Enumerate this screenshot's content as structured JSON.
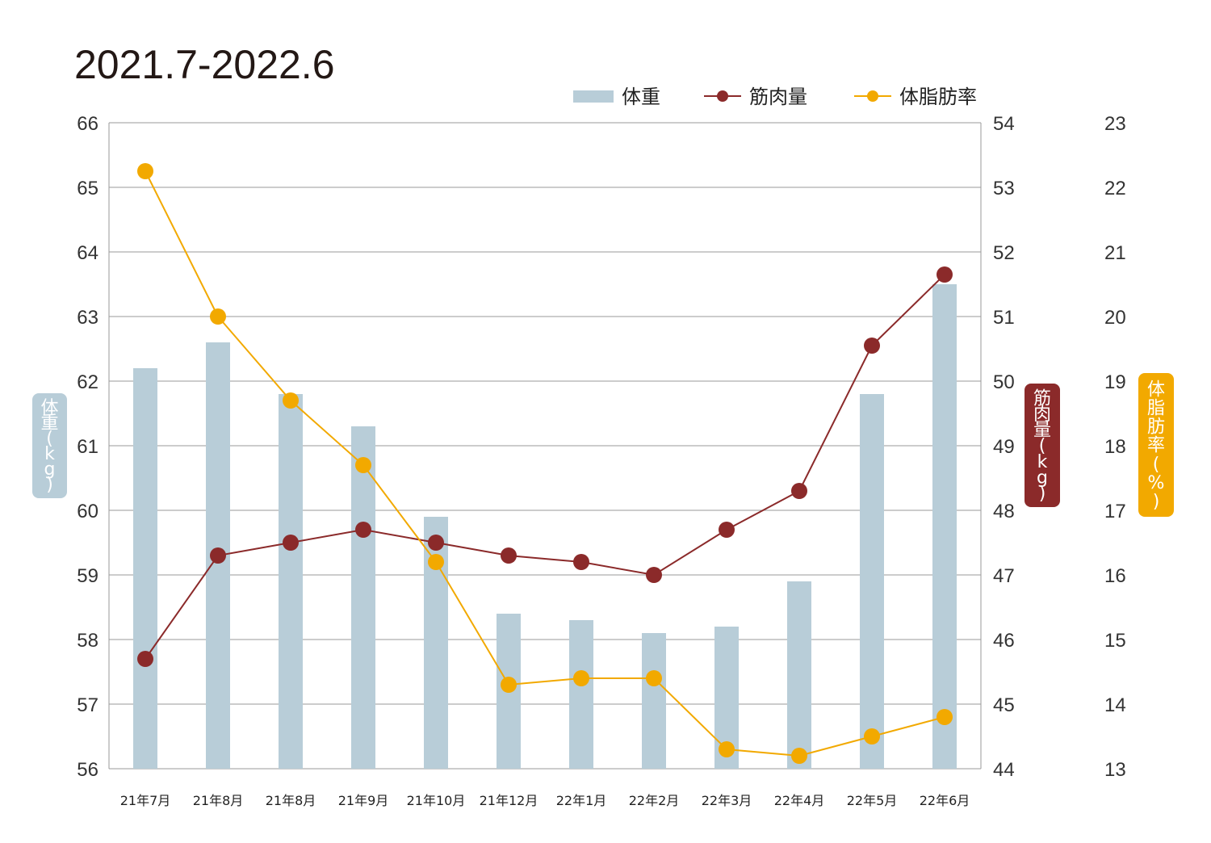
{
  "chart_data": {
    "type": "bar+line",
    "title": "2021.7-2022.6",
    "categories": [
      "21年7月",
      "21年8月",
      "21年8月",
      "21年9月",
      "21年10月",
      "21年12月",
      "22年1月",
      "22年2月",
      "22年3月",
      "22年4月",
      "22年5月",
      "22年6月"
    ],
    "axes": {
      "left": {
        "label": "体重(kg)",
        "range": [
          56,
          66
        ],
        "ticks": [
          56,
          57,
          58,
          59,
          60,
          61,
          62,
          63,
          64,
          65,
          66
        ]
      },
      "right1": {
        "label": "筋肉量(kg)",
        "range": [
          44,
          54
        ],
        "ticks": [
          44,
          45,
          46,
          47,
          48,
          49,
          50,
          51,
          52,
          53,
          54
        ]
      },
      "right2": {
        "label": "体脂肪率(%)",
        "range": [
          13,
          23
        ],
        "ticks": [
          13,
          14,
          15,
          16,
          17,
          18,
          19,
          20,
          21,
          22,
          23
        ]
      }
    },
    "series": [
      {
        "name": "体重",
        "type": "bar",
        "axis": "left",
        "color": "#b8cdd8",
        "values": [
          62.2,
          62.6,
          61.8,
          61.3,
          59.9,
          58.4,
          58.3,
          58.1,
          58.2,
          58.9,
          61.8,
          63.5
        ]
      },
      {
        "name": "筋肉量",
        "type": "line",
        "axis": "right1",
        "color": "#8b2a2a",
        "values": [
          45.7,
          47.3,
          47.5,
          47.7,
          47.5,
          47.3,
          47.2,
          47.0,
          47.7,
          48.3,
          50.55,
          51.65
        ]
      },
      {
        "name": "体脂肪率",
        "type": "line",
        "axis": "right2",
        "color": "#f2a900",
        "values": [
          22.25,
          20.0,
          18.7,
          17.7,
          16.2,
          14.3,
          14.4,
          14.4,
          13.3,
          13.2,
          13.5,
          13.8
        ]
      }
    ],
    "legend": [
      "体重",
      "筋肉量",
      "体脂肪率"
    ],
    "legend_placement": "top-right",
    "grid": true
  }
}
